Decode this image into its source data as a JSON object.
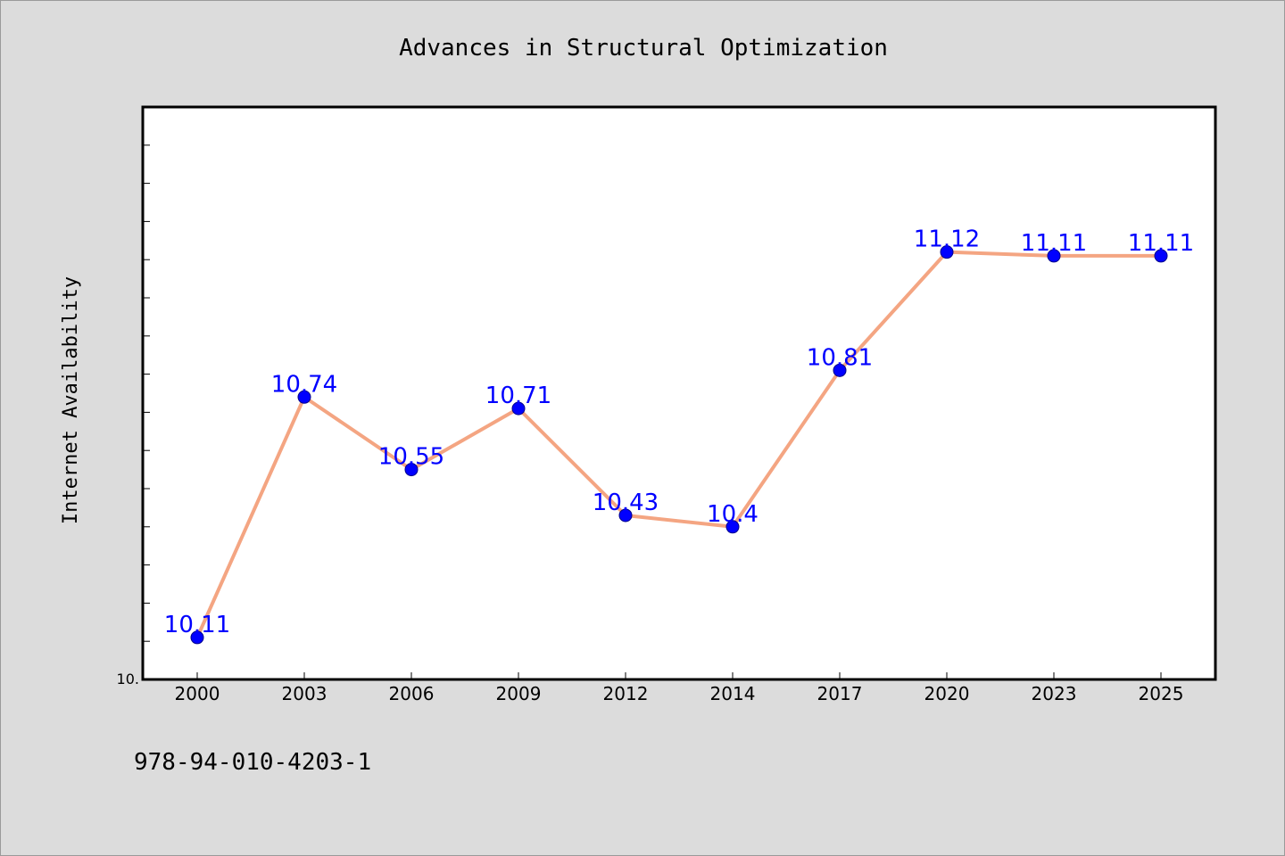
{
  "chart_data": {
    "type": "line",
    "title": "Advances in Structural Optimization",
    "ylabel": "Internet Availability",
    "xlabel": "",
    "categories": [
      "2000",
      "2003",
      "2006",
      "2009",
      "2012",
      "2014",
      "2017",
      "2020",
      "2023",
      "2025"
    ],
    "series": [
      {
        "values": [
          10.11,
          10.74,
          10.55,
          10.71,
          10.43,
          10.4,
          10.81,
          11.12,
          11.11,
          11.11
        ],
        "labels": [
          "10.11",
          "10.74",
          "10.55",
          "10.71",
          "10.43",
          "10.4",
          "10.81",
          "11.12",
          "11.11",
          "11.11"
        ],
        "line_color": "#f4a582",
        "marker_color": "#0000ff",
        "label_color": "#0000ff"
      }
    ],
    "ylim": [
      10.0,
      11.5
    ],
    "y_tick_labels_shown": [
      "10."
    ],
    "y_minor_tick_step": 0.1,
    "grid": false,
    "legend": "none"
  },
  "footer": {
    "code": "978-94-010-4203-1"
  },
  "colors": {
    "background": "#dcdcdc",
    "plot_background": "#ffffff",
    "axis": "#000000"
  }
}
